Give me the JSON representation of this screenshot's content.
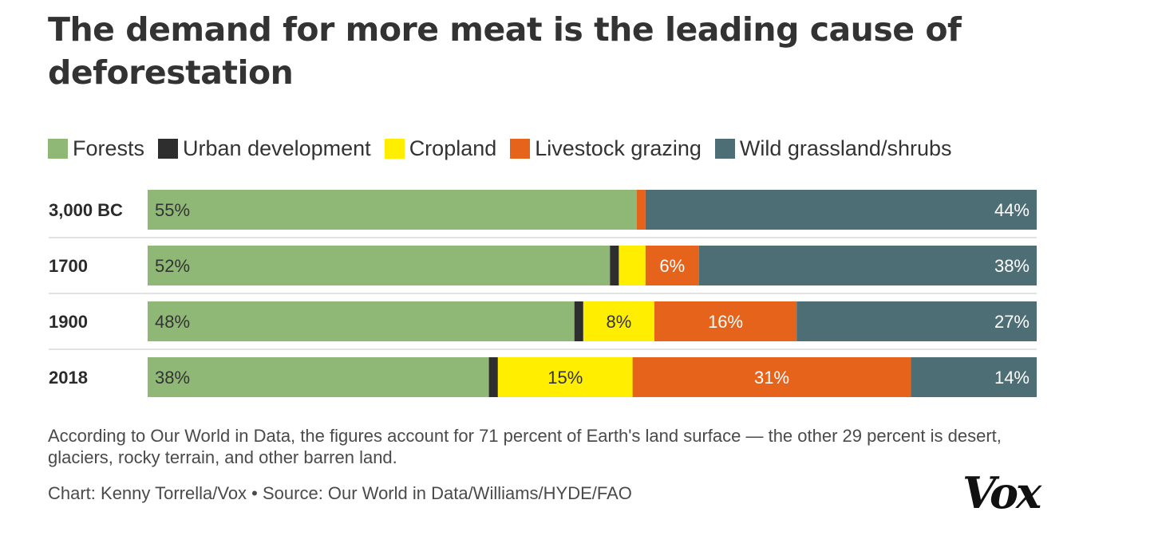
{
  "title": "The demand for more meat is the leading cause of deforestation",
  "legend": [
    {
      "label": "Forests",
      "color": "#8fb876"
    },
    {
      "label": "Urban development",
      "color": "#2e2e2e"
    },
    {
      "label": "Cropland",
      "color": "#ffee00"
    },
    {
      "label": "Livestock grazing",
      "color": "#e5631b"
    },
    {
      "label": "Wild grassland/shrubs",
      "color": "#4d6e75"
    }
  ],
  "chart_data": {
    "type": "bar",
    "orientation": "horizontal",
    "stacked": true,
    "unit": "%",
    "categories": [
      "3,000 BC",
      "1700",
      "1900",
      "2018"
    ],
    "series": [
      {
        "name": "Forests",
        "color": "#8fb876",
        "values": [
          55,
          52,
          48,
          38
        ],
        "labels": [
          "55%",
          "52%",
          "48%",
          "38%"
        ]
      },
      {
        "name": "Urban development",
        "color": "#2e2e2e",
        "values": [
          0,
          1,
          1,
          1
        ],
        "labels": [
          "",
          "",
          "",
          ""
        ]
      },
      {
        "name": "Cropland",
        "color": "#ffee00",
        "values": [
          0,
          3,
          8,
          15
        ],
        "labels": [
          "",
          "",
          "8%",
          "15%"
        ]
      },
      {
        "name": "Livestock grazing",
        "color": "#e5631b",
        "values": [
          1,
          6,
          16,
          31
        ],
        "labels": [
          "",
          "6%",
          "16%",
          "31%"
        ]
      },
      {
        "name": "Wild grassland/shrubs",
        "color": "#4d6e75",
        "values": [
          44,
          38,
          27,
          14
        ],
        "labels": [
          "44%",
          "38%",
          "27%",
          "14%"
        ]
      }
    ],
    "title": "The demand for more meat is the leading cause of deforestation",
    "legend_position": "top-left",
    "grid": false
  },
  "note": "According to Our World in Data, the figures account for 71 percent of Earth's land surface — the other 29 percent is desert, glaciers, rocky terrain, and other barren land.",
  "credit": "Chart: Kenny Torrella/Vox • Source: Our World in Data/Williams/HYDE/FAO",
  "logo_text": "Vox"
}
